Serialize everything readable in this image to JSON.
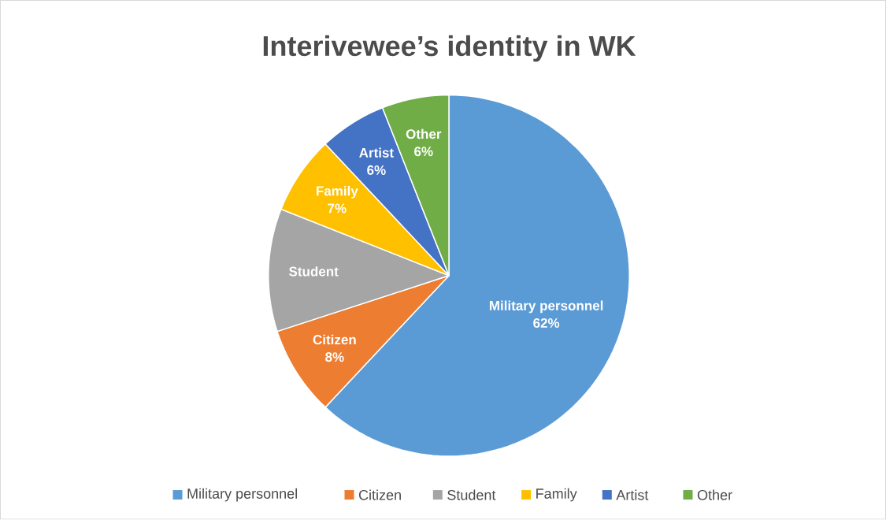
{
  "chart_data": {
    "type": "pie",
    "title": "Interivewee’s identity in WK",
    "categories": [
      "Military personnel",
      "Citizen",
      "Student",
      "Family",
      "Artist",
      "Other"
    ],
    "values": [
      62,
      8,
      11,
      7,
      6,
      6
    ],
    "colors": [
      "#5b9bd5",
      "#ed7d31",
      "#a5a5a5",
      "#ffc000",
      "#4472c4",
      "#70ad47"
    ],
    "value_labels": [
      "62%",
      "8%",
      null,
      "7%",
      "6%",
      "6%"
    ],
    "legend": "bottom"
  }
}
